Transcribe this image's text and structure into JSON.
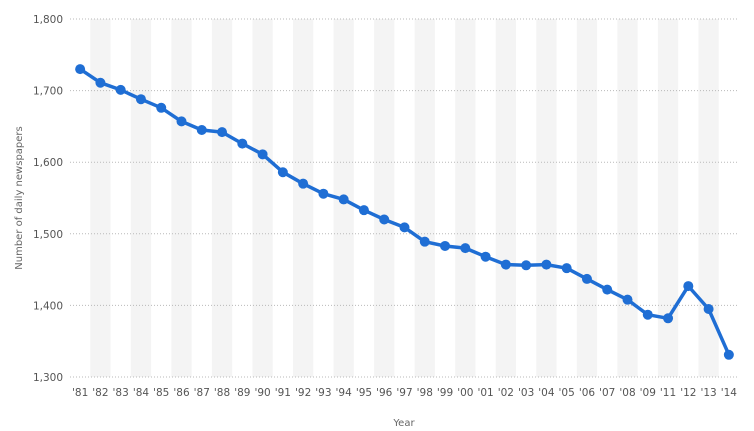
{
  "chart_data": {
    "type": "line",
    "title": "",
    "xlabel": "Year",
    "ylabel": "Number of daily newspapers",
    "categories": [
      "'81",
      "'82",
      "'83",
      "'84",
      "'85",
      "'86",
      "'87",
      "'88",
      "'89",
      "'90",
      "'91",
      "'92",
      "'93",
      "'94",
      "'95",
      "'96",
      "'97",
      "'98",
      "'99",
      "'00",
      "'01",
      "'02",
      "'03",
      "'04",
      "'05",
      "'06",
      "'07",
      "'08",
      "'09",
      "'11",
      "'12",
      "'13",
      "'14"
    ],
    "series": [
      {
        "values": [
          1730,
          1711,
          1701,
          1688,
          1676,
          1657,
          1645,
          1642,
          1626,
          1611,
          1586,
          1570,
          1556,
          1548,
          1533,
          1520,
          1509,
          1489,
          1483,
          1480,
          1468,
          1457,
          1456,
          1457,
          1452,
          1437,
          1422,
          1408,
          1387,
          1382,
          1427,
          1395,
          1331
        ]
      }
    ],
    "ylim": [
      1300,
      1800
    ],
    "yticks": [
      1300,
      1400,
      1500,
      1600,
      1700,
      1800
    ],
    "ytick_labels": [
      "1,300",
      "1,400",
      "1,500",
      "1,600",
      "1,700",
      "1,800"
    ],
    "grid": true,
    "line_color": "#1f6ed4"
  }
}
